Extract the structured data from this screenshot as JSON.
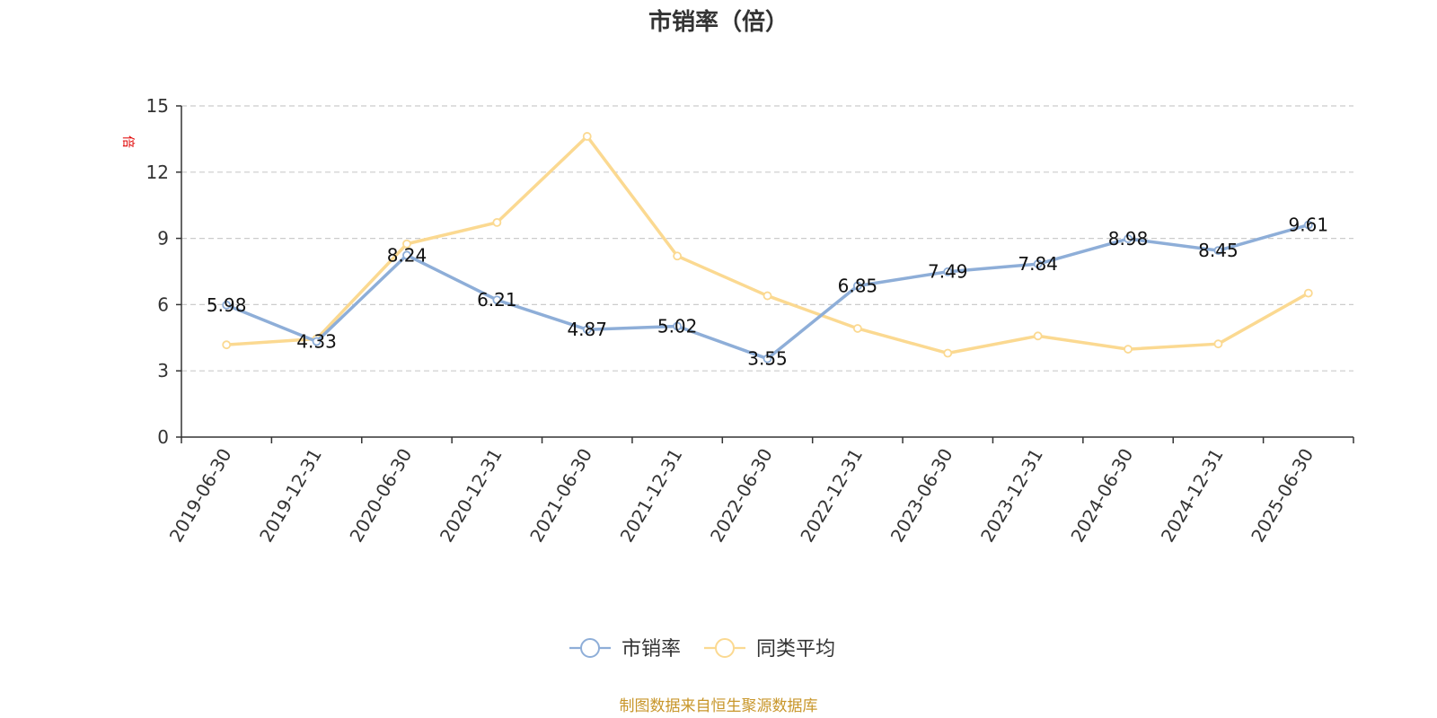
{
  "chart_data": {
    "type": "line",
    "title": "市销率（倍）",
    "ylabel": "倍",
    "ylim": [
      0,
      15
    ],
    "yticks": [
      0,
      3,
      6,
      9,
      12,
      15
    ],
    "grid": true,
    "legend_position": "bottom-center",
    "categories": [
      "2019-06-30",
      "2019-12-31",
      "2020-06-30",
      "2020-12-31",
      "2021-06-30",
      "2021-12-31",
      "2022-06-30",
      "2022-12-31",
      "2023-06-30",
      "2023-12-31",
      "2024-06-30",
      "2024-12-31",
      "2025-06-30"
    ],
    "series": [
      {
        "name": "市销率",
        "color": "#8eaed8",
        "values": [
          5.98,
          4.33,
          8.24,
          6.21,
          4.87,
          5.02,
          3.55,
          6.85,
          7.49,
          7.84,
          8.98,
          8.45,
          9.61
        ],
        "data_labels": [
          "5.98",
          "4.33",
          "8.24",
          "6.21",
          "4.87",
          "5.02",
          "3.55",
          "6.85",
          "7.49",
          "7.84",
          "8.98",
          "8.45",
          "9.61"
        ]
      },
      {
        "name": "同类平均",
        "color": "#fbd991",
        "values": [
          4.18,
          4.45,
          8.75,
          9.72,
          13.62,
          8.2,
          6.4,
          4.92,
          3.8,
          4.58,
          3.98,
          4.22,
          6.52
        ]
      }
    ]
  },
  "source_text": "制图数据来自恒生聚源数据库",
  "colors": {
    "axis": "#333333",
    "grid": "#cccccc",
    "source": "#c8962a",
    "unit": "#e00000"
  }
}
